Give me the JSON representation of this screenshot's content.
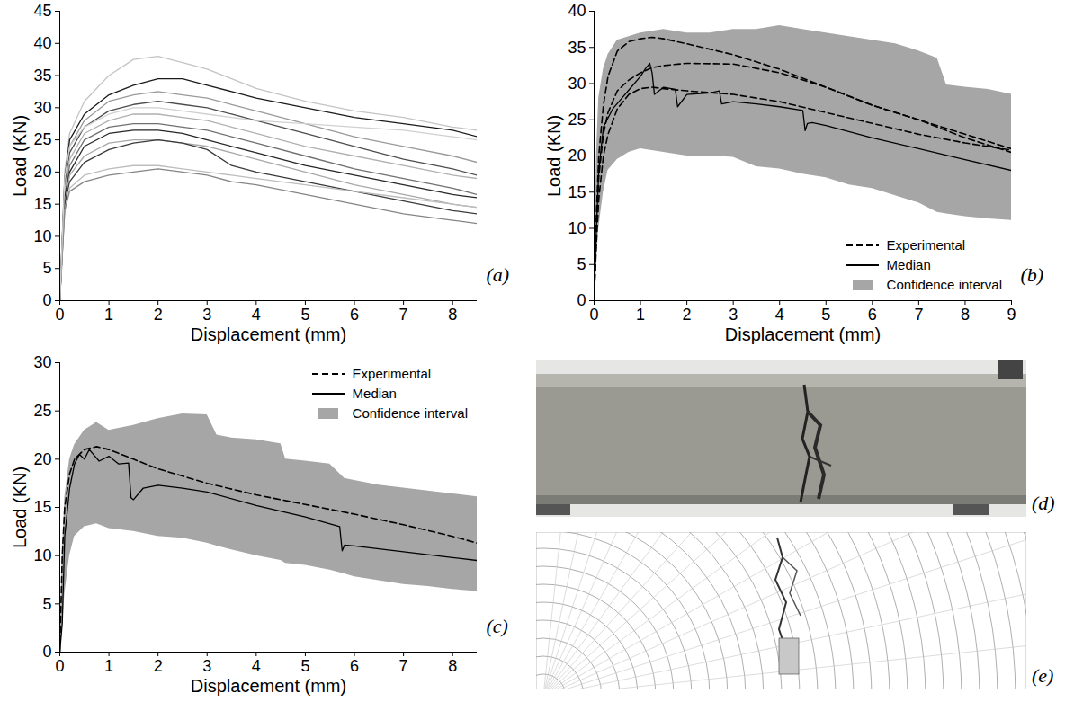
{
  "chart_data": [
    {
      "type": "line",
      "annotations": [
        "(a)"
      ],
      "x_label": "Displacement (mm)",
      "y_label": "Load (KN)",
      "xlim": [
        0,
        8.5
      ],
      "xticks": [
        0,
        1,
        2,
        3,
        4,
        5,
        6,
        7,
        8
      ],
      "ylim": [
        0,
        45
      ],
      "yticks": [
        0,
        5,
        10,
        15,
        20,
        25,
        30,
        35,
        40,
        45
      ],
      "series": [
        {
          "type": "line",
          "color": "#c4c4c4",
          "x": [
            0,
            0.1,
            0.2,
            0.5,
            1,
            1.5,
            2,
            2.5,
            3,
            3.5,
            4,
            5,
            6,
            7,
            8,
            8.5
          ],
          "values": [
            0,
            20,
            26,
            31,
            35,
            37.5,
            38,
            37,
            36,
            34.5,
            33,
            31,
            29.5,
            28.5,
            27,
            26.5
          ]
        },
        {
          "type": "line",
          "color": "#1a1a1a",
          "x": [
            0,
            0.1,
            0.2,
            0.5,
            1,
            1.5,
            2,
            2.5,
            3,
            3.5,
            4,
            5,
            6,
            7,
            8,
            8.5
          ],
          "values": [
            0,
            19,
            25,
            29,
            32,
            33.5,
            34.5,
            34.5,
            33.5,
            32.5,
            31.5,
            30,
            28.5,
            27.5,
            26.5,
            25.5
          ]
        },
        {
          "type": "line",
          "color": "#9a9a9a",
          "x": [
            0,
            0.1,
            0.2,
            0.5,
            1,
            1.5,
            2,
            2.5,
            3,
            3.5,
            4,
            5,
            6,
            7,
            8,
            8.5
          ],
          "values": [
            0,
            18,
            24,
            28,
            31,
            32,
            32.5,
            32,
            31.5,
            30.5,
            29.5,
            27.5,
            25.5,
            24,
            22.5,
            21.5
          ]
        },
        {
          "type": "line",
          "color": "#4d4d4d",
          "x": [
            0,
            0.1,
            0.2,
            0.5,
            1,
            1.5,
            2,
            2.5,
            3,
            3.5,
            4,
            5,
            6,
            7,
            8,
            8.5
          ],
          "values": [
            0,
            18,
            23,
            27,
            29.5,
            30.5,
            31,
            30.5,
            30,
            29,
            28,
            26,
            24,
            22,
            20.5,
            19.5
          ]
        },
        {
          "type": "line",
          "color": "#b0b0b0",
          "x": [
            0,
            0.1,
            0.2,
            0.5,
            1,
            1.5,
            2,
            2.5,
            3,
            3.5,
            4,
            5,
            6,
            7,
            8,
            8.5
          ],
          "values": [
            0,
            17,
            22,
            26,
            28,
            29,
            29,
            28.5,
            28,
            27,
            26,
            24,
            22.5,
            21,
            19.5,
            19
          ]
        },
        {
          "type": "line",
          "color": "#707070",
          "x": [
            0,
            0.1,
            0.2,
            0.5,
            1,
            1.5,
            2,
            2.5,
            3,
            3.5,
            4,
            5,
            6,
            7,
            8,
            8.5
          ],
          "values": [
            0,
            16,
            21,
            25,
            27,
            27.5,
            27.5,
            27,
            26.5,
            25.5,
            24.5,
            22.5,
            20.5,
            19,
            17.5,
            16.5
          ]
        },
        {
          "type": "line",
          "color": "#262626",
          "x": [
            0,
            0.1,
            0.2,
            0.5,
            1,
            1.5,
            2,
            2.5,
            3,
            3.5,
            4,
            5,
            6,
            7,
            8,
            8.5
          ],
          "values": [
            0,
            16,
            20,
            24,
            26,
            26.5,
            26.5,
            26,
            25,
            24,
            23,
            21,
            19.5,
            18,
            16.5,
            16
          ]
        },
        {
          "type": "line",
          "color": "#a8a8a8",
          "x": [
            0,
            0.1,
            0.2,
            0.5,
            1,
            1.5,
            2,
            2.5,
            3,
            3.5,
            4,
            5,
            6,
            7,
            8,
            8.5
          ],
          "values": [
            0,
            15,
            19.5,
            22.5,
            24.5,
            25,
            25,
            24.5,
            24,
            23,
            22,
            20,
            18,
            16.5,
            15,
            14.5
          ]
        },
        {
          "type": "line",
          "color": "#3a3a3a",
          "x": [
            0,
            0.1,
            0.2,
            0.5,
            1,
            1.5,
            2,
            2.5,
            3,
            3.5,
            4,
            5,
            6,
            7,
            8,
            8.5
          ],
          "values": [
            0,
            15,
            18.5,
            21.5,
            23.5,
            24.5,
            25,
            24.5,
            23.5,
            21,
            20,
            18.5,
            17,
            15.5,
            14,
            13.5
          ]
        },
        {
          "type": "line",
          "color": "#bdbdbd",
          "x": [
            0,
            0.1,
            0.2,
            0.5,
            1,
            1.5,
            2,
            2.5,
            3,
            3.5,
            4,
            5,
            6,
            7,
            8,
            8.5
          ],
          "values": [
            0,
            14,
            17.5,
            19.5,
            20.5,
            21,
            21,
            20.5,
            20,
            19.5,
            19,
            18,
            17,
            16,
            15,
            14.5
          ]
        },
        {
          "type": "line",
          "color": "#858585",
          "x": [
            0,
            0.1,
            0.2,
            0.5,
            1,
            1.5,
            2,
            2.5,
            3,
            3.5,
            4,
            5,
            6,
            7,
            8,
            8.5
          ],
          "values": [
            0,
            14,
            17,
            18.5,
            19.5,
            20,
            20.5,
            20,
            19.5,
            18.5,
            18,
            16.5,
            15,
            13.5,
            12.5,
            12
          ]
        },
        {
          "type": "line",
          "color": "#d0d0d0",
          "x": [
            0,
            0.1,
            0.2,
            0.5,
            1,
            1.5,
            2,
            2.5,
            3,
            3.5,
            4,
            5,
            6,
            7,
            8,
            8.5
          ],
          "values": [
            0,
            19,
            24,
            27,
            29,
            30,
            30,
            29.5,
            29,
            28.5,
            28,
            27.5,
            27,
            26.5,
            25.5,
            25
          ]
        }
      ]
    },
    {
      "type": "line",
      "annotations": [
        "(b)"
      ],
      "x_label": "Displacement (mm)",
      "y_label": "Load (KN)",
      "xlim": [
        0,
        9
      ],
      "xticks": [
        0,
        1,
        2,
        3,
        4,
        5,
        6,
        7,
        8,
        9
      ],
      "ylim": [
        0,
        40
      ],
      "yticks": [
        0,
        5,
        10,
        15,
        20,
        25,
        30,
        35,
        40
      ],
      "legend": "bottom-right",
      "series": [
        {
          "name": "Experimental",
          "type": "line",
          "line_style": "dashed",
          "color": "#000000",
          "x": [
            0,
            0.05,
            0.1,
            0.2,
            0.3,
            0.5,
            0.75,
            1,
            1.25,
            1.5,
            2,
            3,
            4,
            5,
            6,
            7,
            8,
            9
          ],
          "values": [
            0,
            12,
            20,
            27,
            31,
            34.5,
            35.8,
            36.2,
            36.4,
            36.2,
            35.5,
            34,
            32,
            29.5,
            27,
            25,
            23,
            21
          ]
        },
        {
          "name": "Experimental",
          "type": "line",
          "line_style": "dashed",
          "color": "#000000",
          "x": [
            0,
            0.05,
            0.1,
            0.2,
            0.3,
            0.5,
            0.75,
            1,
            1.25,
            1.5,
            2,
            3,
            4,
            5,
            6,
            7,
            8,
            9
          ],
          "values": [
            0,
            10,
            17,
            23,
            26,
            29,
            30.5,
            31.5,
            32.2,
            32.5,
            32.8,
            32.7,
            31.5,
            29.5,
            27,
            25,
            22.5,
            20.5
          ]
        },
        {
          "name": "Experimental",
          "type": "line",
          "line_style": "dashed",
          "color": "#000000",
          "x": [
            0,
            0.05,
            0.1,
            0.2,
            0.3,
            0.5,
            0.75,
            1,
            1.25,
            1.5,
            2,
            3,
            4,
            5,
            6,
            7,
            8,
            9
          ],
          "values": [
            0,
            8,
            14,
            20,
            23,
            26.5,
            28.5,
            29.3,
            29.5,
            29.3,
            29,
            28.5,
            27.5,
            26,
            24.5,
            23,
            21.8,
            20.8
          ]
        },
        {
          "name": "Median",
          "type": "line",
          "line_style": "solid",
          "color": "#000000",
          "x": [
            0,
            0.05,
            0.1,
            0.2,
            0.4,
            0.6,
            0.8,
            1,
            1.1,
            1.2,
            1.25,
            1.3,
            1.5,
            1.75,
            1.8,
            2,
            2.5,
            2.7,
            2.75,
            3,
            3.5,
            4,
            4.5,
            4.55,
            4.6,
            4.7,
            5,
            6,
            7,
            8,
            9
          ],
          "values": [
            0,
            10,
            18,
            24,
            26.5,
            28,
            29.5,
            31,
            32,
            32.8,
            31.5,
            28.5,
            29.5,
            29.2,
            26.8,
            28.5,
            28.7,
            29,
            27.2,
            27.5,
            27.2,
            26.8,
            26.3,
            23.5,
            24.5,
            24.6,
            24.2,
            22.5,
            21,
            19.5,
            18
          ]
        },
        {
          "name": "Confidence interval",
          "type": "area",
          "color": "#a6a6a6",
          "x": [
            0,
            0.05,
            0.1,
            0.2,
            0.3,
            0.5,
            0.75,
            1,
            1.5,
            2,
            2.5,
            3,
            3.5,
            4,
            4.5,
            5,
            5.5,
            6,
            6.5,
            7,
            7.4,
            7.6,
            8,
            8.5,
            9
          ],
          "upper": [
            0,
            20,
            28,
            32,
            34,
            36,
            36.5,
            37,
            37.5,
            37,
            37,
            37.5,
            37.5,
            38,
            37.5,
            37,
            36.5,
            36,
            35.5,
            34.5,
            33.5,
            29.8,
            29.5,
            29.2,
            28.5
          ],
          "lower": [
            0,
            5,
            10,
            15,
            18,
            19.5,
            20.5,
            21,
            20.5,
            20,
            20,
            19.8,
            18.5,
            18.2,
            17.5,
            17,
            16,
            15.5,
            14.5,
            13.5,
            12.2,
            12,
            11.6,
            11.3,
            11.1
          ]
        }
      ]
    },
    {
      "type": "line",
      "annotations": [
        "(c)"
      ],
      "x_label": "Displacement (mm)",
      "y_label": "Load (KN)",
      "xlim": [
        0,
        8.5
      ],
      "xticks": [
        0,
        1,
        2,
        3,
        4,
        5,
        6,
        7,
        8
      ],
      "ylim": [
        0,
        30
      ],
      "yticks": [
        0,
        5,
        10,
        15,
        20,
        25,
        30
      ],
      "legend": "top-right",
      "series": [
        {
          "name": "Experimental",
          "type": "line",
          "line_style": "dashed",
          "color": "#000000",
          "x": [
            0,
            0.05,
            0.1,
            0.2,
            0.3,
            0.5,
            0.75,
            1,
            1.5,
            2,
            3,
            4,
            5,
            6,
            7,
            8,
            8.5
          ],
          "values": [
            0,
            10,
            15,
            18.5,
            20,
            21,
            21.3,
            21,
            20,
            19,
            17.5,
            16.3,
            15.3,
            14.3,
            13.2,
            12,
            11.3
          ]
        },
        {
          "name": "Median",
          "type": "line",
          "line_style": "solid",
          "color": "#000000",
          "x": [
            0,
            0.05,
            0.1,
            0.2,
            0.3,
            0.4,
            0.5,
            0.6,
            0.8,
            1,
            1.2,
            1.4,
            1.45,
            1.5,
            1.7,
            2,
            2.5,
            3,
            4,
            5,
            5.7,
            5.75,
            5.8,
            6,
            7,
            8,
            8.5
          ],
          "values": [
            0,
            3,
            12,
            17,
            19.5,
            20.5,
            20,
            21,
            19.8,
            20.3,
            19.5,
            19.6,
            16,
            15.8,
            17,
            17.3,
            17,
            16.6,
            15.2,
            14,
            13,
            10.5,
            11.1,
            11,
            10.4,
            9.8,
            9.5
          ]
        },
        {
          "name": "Confidence interval",
          "type": "area",
          "color": "#a6a6a6",
          "x": [
            0,
            0.05,
            0.1,
            0.2,
            0.3,
            0.5,
            0.75,
            1,
            1.5,
            2,
            2.5,
            3,
            3.2,
            3.5,
            4,
            4.5,
            4.6,
            5,
            5.5,
            5.8,
            6,
            6.5,
            7,
            7.5,
            8,
            8.5
          ],
          "upper": [
            0,
            10,
            16,
            20,
            21.5,
            23,
            23.8,
            23,
            23.5,
            24.2,
            24.7,
            24.6,
            22.5,
            22.2,
            22,
            21.6,
            20,
            19.8,
            19.5,
            18,
            17.8,
            17.3,
            17,
            16.7,
            16.4,
            16.1
          ],
          "lower": [
            0,
            2,
            6,
            10,
            12,
            13,
            13.3,
            12.8,
            12.5,
            12,
            11.8,
            11.3,
            11,
            10.6,
            10,
            9.5,
            9.2,
            9,
            8.5,
            8.1,
            7.8,
            7.4,
            7,
            6.8,
            6.5,
            6.3
          ]
        }
      ]
    },
    {
      "type": "image",
      "annotations": [
        "(d)"
      ]
    },
    {
      "type": "image",
      "annotations": [
        "(e)"
      ]
    }
  ]
}
